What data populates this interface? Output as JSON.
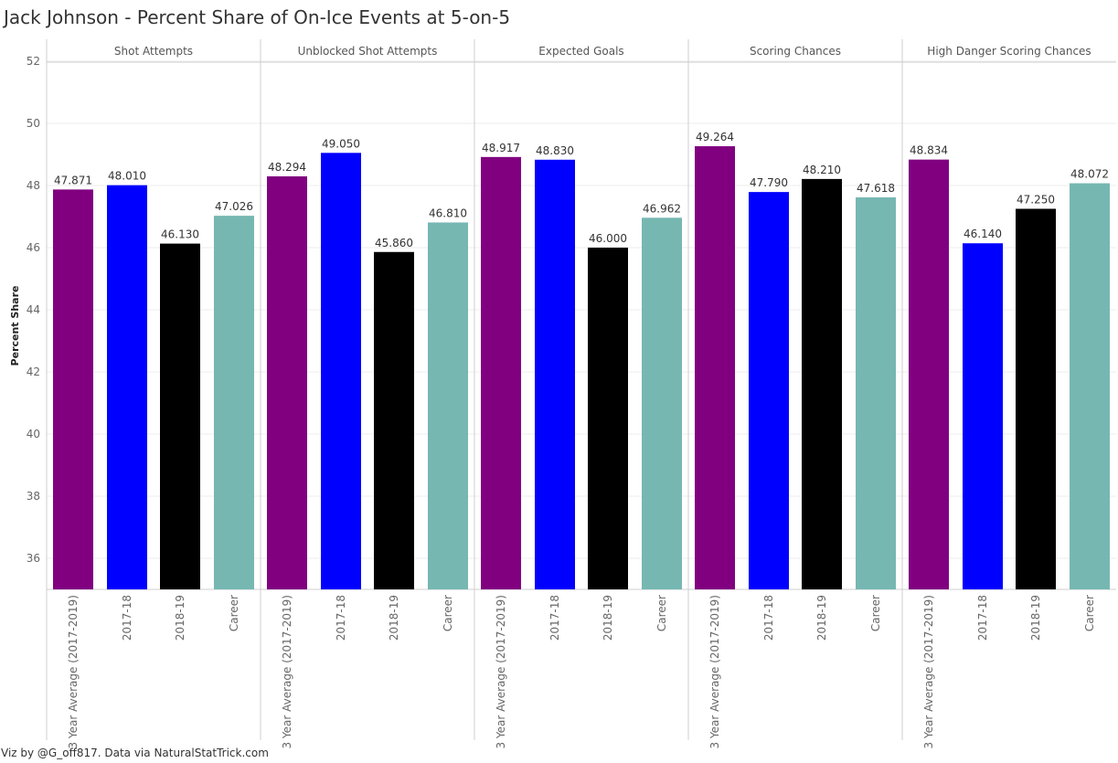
{
  "chart_data": {
    "type": "bar",
    "title": "Jack Johnson - Percent Share of On-Ice Events at 5-on-5",
    "ylabel": "Percent Share",
    "ylim": [
      35,
      52
    ],
    "yticks": [
      36,
      38,
      40,
      42,
      44,
      46,
      48,
      50,
      52
    ],
    "grid": true,
    "categories": [
      "3 Year Average (2017-2019)",
      "2017-18",
      "2018-19",
      "Career"
    ],
    "colors": [
      "#800080",
      "#0000ff",
      "#000000",
      "#76b7b2"
    ],
    "panels": [
      {
        "name": "Shot Attempts",
        "values": [
          47.871,
          48.01,
          46.13,
          47.026
        ],
        "labels": [
          "47.871",
          "48.010",
          "46.130",
          "47.026"
        ]
      },
      {
        "name": "Unblocked Shot Attempts",
        "values": [
          48.294,
          49.05,
          45.86,
          46.81
        ],
        "labels": [
          "48.294",
          "49.050",
          "45.860",
          "46.810"
        ]
      },
      {
        "name": "Expected Goals",
        "values": [
          48.917,
          48.83,
          46.0,
          46.962
        ],
        "labels": [
          "48.917",
          "48.830",
          "46.000",
          "46.962"
        ]
      },
      {
        "name": "Scoring Chances",
        "values": [
          49.264,
          47.79,
          48.21,
          47.618
        ],
        "labels": [
          "49.264",
          "47.790",
          "48.210",
          "47.618"
        ]
      },
      {
        "name": "High Danger Scoring Chances",
        "values": [
          48.834,
          46.14,
          47.25,
          48.072
        ],
        "labels": [
          "48.834",
          "46.140",
          "47.250",
          "48.072"
        ]
      }
    ]
  },
  "footer": {
    "credit": "Viz by @G_off817.  Data via NaturalStatTrick.com"
  }
}
